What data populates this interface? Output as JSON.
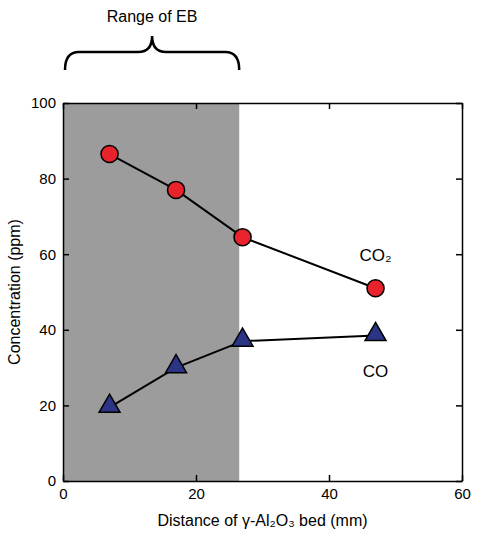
{
  "chart_data": {
    "type": "line",
    "x_label": "Distance of γ-Al₂O₃ bed (mm)",
    "y_label": "Concentration (ppm)",
    "x": [
      7,
      17,
      27,
      47
    ],
    "series": [
      {
        "name": "CO₂",
        "color": "#e8232b",
        "marker": "circle",
        "values": [
          86.5,
          77,
          64.5,
          51
        ]
      },
      {
        "name": "CO",
        "color": "#2c3585",
        "marker": "triangle",
        "values": [
          19.5,
          30,
          37,
          38.5
        ]
      }
    ],
    "xlim": [
      0,
      60
    ],
    "xticks": [
      0,
      20,
      40,
      60
    ],
    "ylim": [
      0,
      100
    ],
    "yticks": [
      0,
      20,
      40,
      60,
      80,
      100
    ],
    "grid": false,
    "annotations": [
      {
        "text": "Range of EB",
        "x_range": [
          0,
          26.5
        ]
      }
    ]
  }
}
